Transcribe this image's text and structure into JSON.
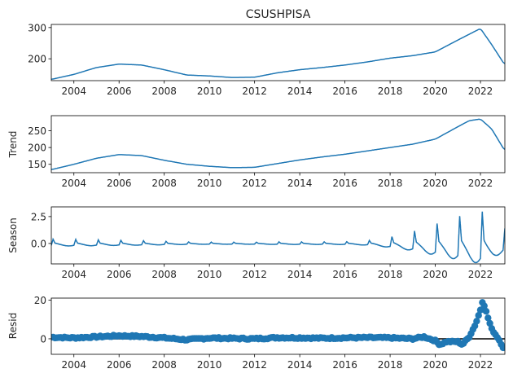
{
  "figure": {
    "title": "CSUSHPISA",
    "line_color": "#1f77b4",
    "axis_color": "#000000",
    "zero_line_color": "#000000"
  },
  "chart_data": [
    {
      "type": "line",
      "name": "observed",
      "title": "CSUSHPISA",
      "ylabel": "",
      "xlim": [
        2003.0,
        2023.08
      ],
      "ylim": [
        130,
        310
      ],
      "x_ticks": [
        2004,
        2006,
        2008,
        2010,
        2012,
        2014,
        2016,
        2018,
        2020,
        2022
      ],
      "y_ticks": [
        200,
        300
      ],
      "points": [
        [
          2003.0,
          134
        ],
        [
          2004.0,
          150
        ],
        [
          2005.0,
          172
        ],
        [
          2006.0,
          183
        ],
        [
          2007.0,
          180
        ],
        [
          2008.0,
          165
        ],
        [
          2009.0,
          148
        ],
        [
          2010.0,
          145
        ],
        [
          2011.0,
          140
        ],
        [
          2012.0,
          141
        ],
        [
          2013.0,
          155
        ],
        [
          2014.0,
          165
        ],
        [
          2015.0,
          172
        ],
        [
          2016.0,
          180
        ],
        [
          2017.0,
          190
        ],
        [
          2018.0,
          202
        ],
        [
          2019.0,
          210
        ],
        [
          2020.0,
          222
        ],
        [
          2021.0,
          260
        ],
        [
          2022.0,
          297
        ],
        [
          2022.5,
          245
        ],
        [
          2023.08,
          180
        ]
      ]
    },
    {
      "type": "line",
      "name": "trend",
      "title": "",
      "ylabel": "Trend",
      "xlim": [
        2003.0,
        2023.08
      ],
      "ylim": [
        125,
        295
      ],
      "x_ticks": [
        2004,
        2006,
        2008,
        2010,
        2012,
        2014,
        2016,
        2018,
        2020,
        2022
      ],
      "y_ticks": [
        150,
        200,
        250
      ],
      "points": [
        [
          2003.0,
          134
        ],
        [
          2004.0,
          150
        ],
        [
          2005.0,
          168
        ],
        [
          2006.0,
          179
        ],
        [
          2007.0,
          176
        ],
        [
          2008.0,
          162
        ],
        [
          2009.0,
          150
        ],
        [
          2010.0,
          144
        ],
        [
          2011.0,
          140
        ],
        [
          2012.0,
          141
        ],
        [
          2013.0,
          152
        ],
        [
          2014.0,
          163
        ],
        [
          2015.0,
          172
        ],
        [
          2016.0,
          180
        ],
        [
          2017.0,
          190
        ],
        [
          2018.0,
          200
        ],
        [
          2019.0,
          210
        ],
        [
          2020.0,
          225
        ],
        [
          2021.0,
          262
        ],
        [
          2021.5,
          280
        ],
        [
          2022.0,
          285
        ],
        [
          2022.5,
          255
        ],
        [
          2023.08,
          190
        ]
      ]
    },
    {
      "type": "line",
      "name": "seasonal",
      "title": "",
      "ylabel": "Season",
      "xlim": [
        2003.0,
        2023.08
      ],
      "ylim": [
        -1.9,
        3.4
      ],
      "x_ticks": [
        2004,
        2006,
        2008,
        2010,
        2012,
        2014,
        2016,
        2018,
        2020,
        2022
      ],
      "y_ticks": [
        0.0,
        2.5
      ],
      "amplitude_by_year": [
        [
          2003,
          0.4
        ],
        [
          2004,
          0.38
        ],
        [
          2005,
          0.34
        ],
        [
          2006,
          0.3
        ],
        [
          2007,
          0.26
        ],
        [
          2008,
          0.2
        ],
        [
          2009,
          0.15
        ],
        [
          2010,
          0.12
        ],
        [
          2011,
          0.12
        ],
        [
          2012,
          0.12
        ],
        [
          2013,
          0.15
        ],
        [
          2014,
          0.15
        ],
        [
          2015,
          0.15
        ],
        [
          2016,
          0.16
        ],
        [
          2017,
          0.25
        ],
        [
          2018,
          0.6
        ],
        [
          2019,
          1.1
        ],
        [
          2020,
          1.8
        ],
        [
          2021,
          2.5
        ],
        [
          2022,
          3.1
        ],
        [
          2023,
          1.4
        ]
      ]
    },
    {
      "type": "scatter",
      "name": "resid",
      "title": "",
      "ylabel": "Resid",
      "xlim": [
        2003.0,
        2023.08
      ],
      "ylim": [
        -8,
        21
      ],
      "x_ticks": [
        2004,
        2006,
        2008,
        2010,
        2012,
        2014,
        2016,
        2018,
        2020,
        2022
      ],
      "y_ticks": [
        0,
        20
      ],
      "baseline": 0,
      "anchors": [
        [
          2003.0,
          0.8
        ],
        [
          2004.0,
          0.5
        ],
        [
          2005.0,
          1.0
        ],
        [
          2006.0,
          1.6
        ],
        [
          2007.0,
          1.2
        ],
        [
          2008.0,
          0.5
        ],
        [
          2009.0,
          -0.5
        ],
        [
          2010.0,
          0.4
        ],
        [
          2011.0,
          0.2
        ],
        [
          2012.0,
          0.0
        ],
        [
          2013.0,
          0.6
        ],
        [
          2014.0,
          0.5
        ],
        [
          2015.0,
          0.3
        ],
        [
          2016.0,
          0.5
        ],
        [
          2017.0,
          0.6
        ],
        [
          2018.0,
          0.5
        ],
        [
          2019.0,
          0.0
        ],
        [
          2019.5,
          1.0
        ],
        [
          2020.0,
          -1.0
        ],
        [
          2020.2,
          -3.0
        ],
        [
          2020.5,
          -1.5
        ],
        [
          2021.0,
          -1.5
        ],
        [
          2021.2,
          -3.0
        ],
        [
          2021.5,
          1.0
        ],
        [
          2021.8,
          8.0
        ],
        [
          2022.0,
          15.0
        ],
        [
          2022.1,
          20.0
        ],
        [
          2022.3,
          12.0
        ],
        [
          2022.5,
          5.0
        ],
        [
          2022.8,
          0.0
        ],
        [
          2023.08,
          -6.0
        ]
      ]
    }
  ]
}
